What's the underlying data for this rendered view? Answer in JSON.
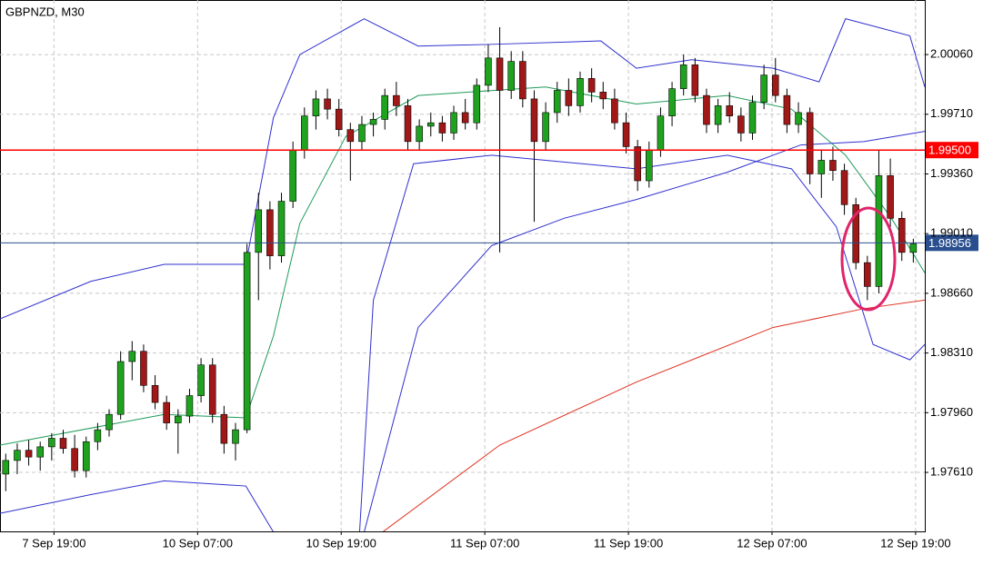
{
  "chart_data": {
    "type": "candlestick",
    "title": "GBPNZD, M30",
    "up_color": "#1fa31f",
    "down_color": "#a01818",
    "grid": true,
    "xlim": [
      -0.5,
      80
    ],
    "ylim": [
      1.97264,
      2.0038
    ],
    "xticks": [
      {
        "value": 4.2,
        "label": "7 Sep 19:00"
      },
      {
        "value": 16.7,
        "label": "10 Sep 07:00"
      },
      {
        "value": 29.2,
        "label": "10 Sep 19:00"
      },
      {
        "value": 41.7,
        "label": "11 Sep 07:00"
      },
      {
        "value": 54.2,
        "label": "11 Sep 19:00"
      },
      {
        "value": 66.7,
        "label": "12 Sep 07:00"
      },
      {
        "value": 79.2,
        "label": "12 Sep 19:00"
      }
    ],
    "yticks": [
      {
        "value": 2.0006,
        "label": "2.00060"
      },
      {
        "value": 1.9971,
        "label": "1.99710"
      },
      {
        "value": 1.9936,
        "label": "1.99360"
      },
      {
        "value": 1.9901,
        "label": "1.99010"
      },
      {
        "value": 1.9866,
        "label": "1.98660"
      },
      {
        "value": 1.9831,
        "label": "1.98310"
      },
      {
        "value": 1.9796,
        "label": "1.97960"
      },
      {
        "value": 1.9761,
        "label": "1.97610"
      }
    ],
    "open": [
      1.976,
      1.9768,
      1.9774,
      1.977,
      1.9776,
      1.9781,
      1.9775,
      1.9762,
      1.9779,
      1.9786,
      1.9795,
      1.9826,
      1.9832,
      1.9812,
      1.9802,
      1.979,
      1.9794,
      1.9806,
      1.9824,
      1.9795,
      1.9778,
      1.9786,
      1.989,
      1.9915,
      1.9888,
      1.992,
      1.995,
      1.997,
      1.998,
      1.9974,
      1.9962,
      1.9955,
      1.9965,
      1.9968,
      1.9982,
      1.9976,
      1.9955,
      1.9964,
      1.9966,
      1.996,
      1.9972,
      1.9966,
      1.9988,
      2.0004,
      1.9985,
      2.0002,
      1.998,
      1.9955,
      1.9972,
      1.9985,
      1.9976,
      1.9992,
      1.9984,
      1.998,
      1.9966,
      1.9952,
      1.9932,
      1.995,
      1.997,
      1.9986,
      2.0,
      1.9982,
      1.9965,
      1.9976,
      1.997,
      1.996,
      1.9978,
      1.9994,
      1.9982,
      1.9965,
      1.9972,
      1.9936,
      1.9944,
      1.9938,
      1.9918,
      1.9884,
      1.987,
      1.9935,
      1.991,
      1.989
    ],
    "high": [
      1.9772,
      1.9778,
      1.978,
      1.9779,
      1.9784,
      1.9786,
      1.9783,
      1.9782,
      1.979,
      1.9798,
      1.9832,
      1.9838,
      1.9836,
      1.9818,
      1.9806,
      1.9798,
      1.981,
      1.9828,
      1.9828,
      1.98,
      1.979,
      1.9895,
      1.9925,
      1.992,
      1.9925,
      1.9955,
      1.9975,
      1.9985,
      1.9986,
      1.998,
      1.9966,
      1.997,
      1.9972,
      1.9986,
      1.999,
      1.998,
      1.9968,
      1.9972,
      1.997,
      1.9976,
      1.998,
      1.9992,
      2.0012,
      2.0022,
      2.0008,
      2.0008,
      1.9985,
      1.9978,
      1.999,
      1.9992,
      1.9996,
      1.9998,
      1.999,
      1.9986,
      1.9972,
      1.9956,
      1.9955,
      1.9975,
      1.999,
      2.0006,
      2.0004,
      1.9986,
      1.998,
      1.9984,
      1.9975,
      1.9982,
      2.0,
      2.0004,
      1.9986,
      1.9978,
      1.9975,
      1.995,
      1.9952,
      1.9942,
      1.9922,
      1.9888,
      1.995,
      1.9945,
      1.9914,
      1.9898
    ],
    "low": [
      1.975,
      1.976,
      1.9765,
      1.9762,
      1.9768,
      1.9772,
      1.9758,
      1.9758,
      1.9774,
      1.9782,
      1.9792,
      1.9815,
      1.9808,
      1.9798,
      1.9786,
      1.9772,
      1.979,
      1.9802,
      1.979,
      1.9772,
      1.9768,
      1.9784,
      1.9862,
      1.988,
      1.9884,
      1.9916,
      1.9945,
      1.9962,
      1.9968,
      1.9958,
      1.9932,
      1.995,
      1.9958,
      1.9962,
      1.997,
      1.995,
      1.995,
      1.9958,
      1.9955,
      1.9956,
      1.9962,
      1.9962,
      1.9984,
      1.989,
      1.998,
      1.9975,
      1.9908,
      1.995,
      1.9966,
      1.997,
      1.9972,
      1.9978,
      1.9974,
      1.9962,
      1.9948,
      1.9926,
      1.9928,
      1.9946,
      1.9964,
      1.9982,
      1.9978,
      1.996,
      1.996,
      1.9966,
      1.9955,
      1.9956,
      1.9974,
      1.9978,
      1.996,
      1.996,
      1.993,
      1.9922,
      1.9932,
      1.9912,
      1.988,
      1.9862,
      1.9866,
      1.9905,
      1.9885,
      1.9884
    ],
    "close": [
      1.9768,
      1.9774,
      1.977,
      1.9776,
      1.9781,
      1.9775,
      1.9762,
      1.9779,
      1.9786,
      1.9795,
      1.9826,
      1.9832,
      1.9812,
      1.9802,
      1.979,
      1.9794,
      1.9806,
      1.9824,
      1.9795,
      1.9778,
      1.9786,
      1.989,
      1.9915,
      1.9888,
      1.992,
      1.995,
      1.997,
      1.998,
      1.9974,
      1.9962,
      1.9955,
      1.9965,
      1.9968,
      1.9982,
      1.9976,
      1.9955,
      1.9964,
      1.9966,
      1.996,
      1.9972,
      1.9966,
      1.9988,
      2.0004,
      1.9985,
      2.0002,
      1.998,
      1.9955,
      1.9972,
      1.9985,
      1.9976,
      1.9992,
      1.9984,
      1.998,
      1.9966,
      1.9952,
      1.9932,
      1.995,
      1.997,
      1.9986,
      2.0,
      1.9982,
      1.9965,
      1.9976,
      1.997,
      1.996,
      1.9978,
      1.9994,
      1.9982,
      1.9965,
      1.9972,
      1.9936,
      1.9944,
      1.9938,
      1.9918,
      1.9884,
      1.987,
      1.9935,
      1.991,
      1.989,
      1.9895
    ],
    "lines": [
      {
        "color": "#3030d0",
        "x": [
          -0.5,
          7.4,
          13.8,
          20.9,
          23.3,
          25.6,
          31.2,
          35.9,
          42.3,
          51.8,
          54.9,
          59.7,
          66.8,
          70.8,
          73.1,
          78.7,
          80
        ],
        "values": [
          1.9851,
          1.9873,
          1.9883,
          1.9883,
          1.9969,
          2.0006,
          2.0027,
          2.0011,
          2.0012,
          2.0014,
          1.9998,
          2.0003,
          1.9998,
          1.999,
          2.0027,
          2.0017,
          1.9987
        ]
      },
      {
        "color": "#3030d0",
        "x": [
          -0.5,
          7.4,
          13.8,
          20.9,
          23.3,
          30.8,
          32,
          35.5,
          42.3,
          54.9,
          62.8,
          68.4,
          72.3,
          75.5,
          78.7,
          80
        ],
        "values": [
          1.9737,
          1.9748,
          1.9756,
          1.9753,
          1.9726,
          1.9726,
          1.9862,
          1.9942,
          1.9947,
          1.9939,
          1.9947,
          1.9939,
          1.9905,
          1.9836,
          1.9827,
          1.9836
        ]
      },
      {
        "color": "#1f9a5a",
        "x": [
          -0.5,
          13.8,
          20.9,
          23.3,
          25.6,
          29.6,
          35.9,
          47,
          54.9,
          62.8,
          68.4,
          73.1,
          77.1,
          80
        ],
        "values": [
          1.9777,
          1.9795,
          1.9793,
          1.9841,
          1.9907,
          1.9958,
          1.9982,
          1.9987,
          1.9977,
          1.9982,
          1.9974,
          1.9947,
          1.991,
          1.9878
        ]
      },
      {
        "color": "#3030d0",
        "x": [
          31.2,
          35.9,
          42.3,
          48.6,
          54.9,
          62.8,
          69.2,
          74.7,
          80
        ],
        "values": [
          1.9726,
          1.9846,
          1.9894,
          1.991,
          1.9921,
          1.9937,
          1.9953,
          1.9955,
          1.9961
        ]
      },
      {
        "color": "#e03020",
        "x": [
          32.8,
          43,
          54.9,
          66.8,
          74.7,
          80
        ],
        "values": [
          1.9726,
          1.9777,
          1.9814,
          1.9846,
          1.9857,
          1.9862
        ]
      }
    ],
    "hlines": [
      {
        "value": 1.995,
        "label": "1.99500",
        "color": "#ff0000"
      },
      {
        "value": 1.98956,
        "label": "1.98956",
        "color": "#2a4f8f"
      }
    ]
  }
}
